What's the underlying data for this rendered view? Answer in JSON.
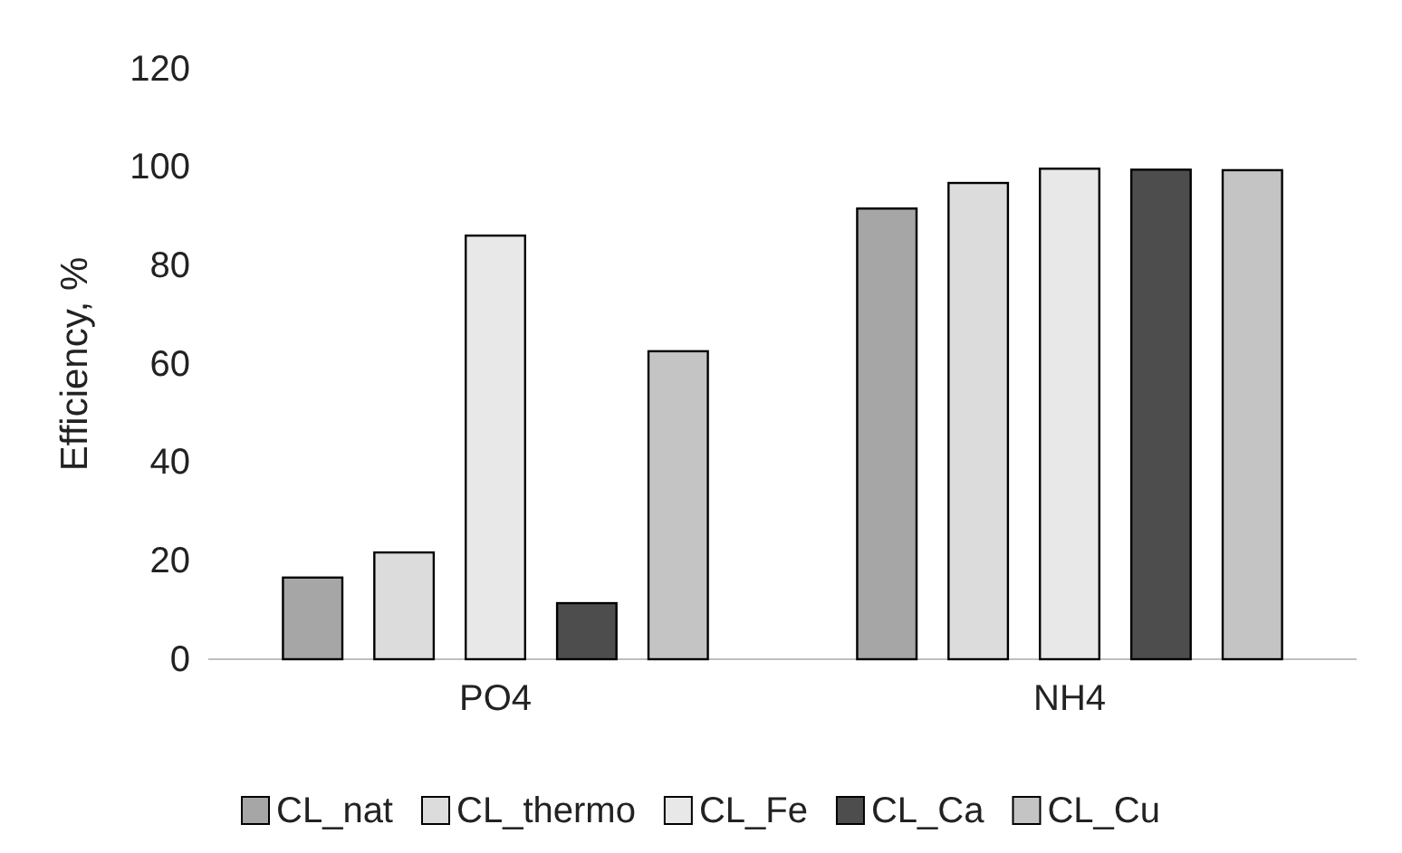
{
  "chart_data": {
    "type": "bar",
    "ylabel": "Efficiency, %",
    "categories": [
      "PO4",
      "NH4"
    ],
    "series": [
      {
        "name": "CL_nat",
        "color": "#a6a6a6",
        "values": [
          16.6,
          91.6
        ]
      },
      {
        "name": "CL_thermo",
        "color": "#dcdcdc",
        "values": [
          21.7,
          96.8
        ]
      },
      {
        "name": "CL_Fe",
        "color": "#e8e8e8",
        "values": [
          86.1,
          99.7
        ]
      },
      {
        "name": "CL_Ca",
        "color": "#4d4d4d",
        "values": [
          11.4,
          99.5
        ]
      },
      {
        "name": "CL_Cu",
        "color": "#c4c4c4",
        "values": [
          62.6,
          99.4
        ]
      }
    ],
    "ylim": [
      0,
      120
    ],
    "yticks": [
      0,
      20,
      40,
      60,
      80,
      100,
      120
    ],
    "legend": "bottom"
  }
}
